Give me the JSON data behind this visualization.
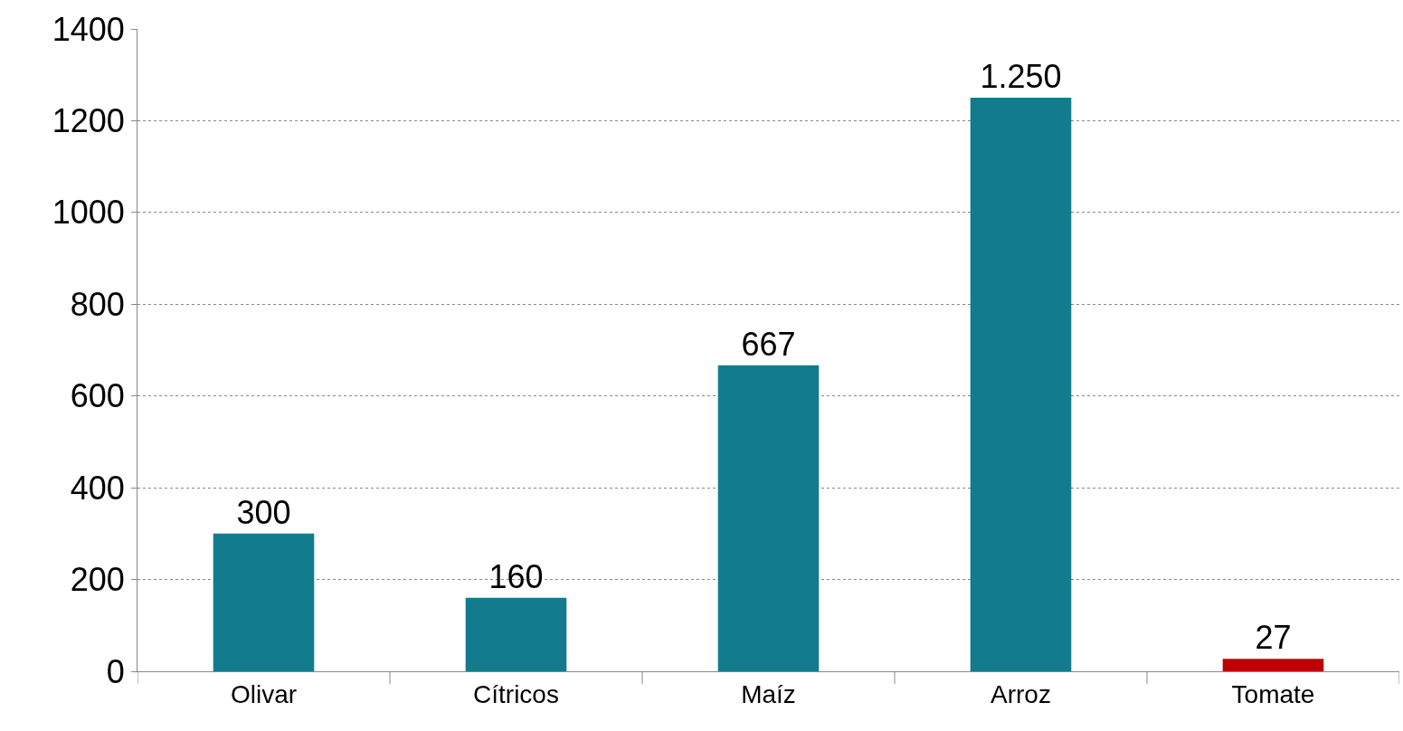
{
  "chart_data": {
    "type": "bar",
    "categories": [
      "Olivar",
      "Cítricos",
      "Maíz",
      "Arroz",
      "Tomate"
    ],
    "values": [
      300,
      160,
      667,
      1250,
      27
    ],
    "colors": [
      "#127c8e",
      "#127c8e",
      "#127c8e",
      "#127c8e",
      "#c00000"
    ],
    "value_labels": [
      "300",
      "160",
      "667",
      "1.250",
      "27"
    ],
    "ylim": [
      0,
      1400
    ],
    "yticks": [
      0,
      200,
      400,
      600,
      800,
      1000,
      1200,
      1400
    ],
    "grid": "y",
    "legend": false
  }
}
